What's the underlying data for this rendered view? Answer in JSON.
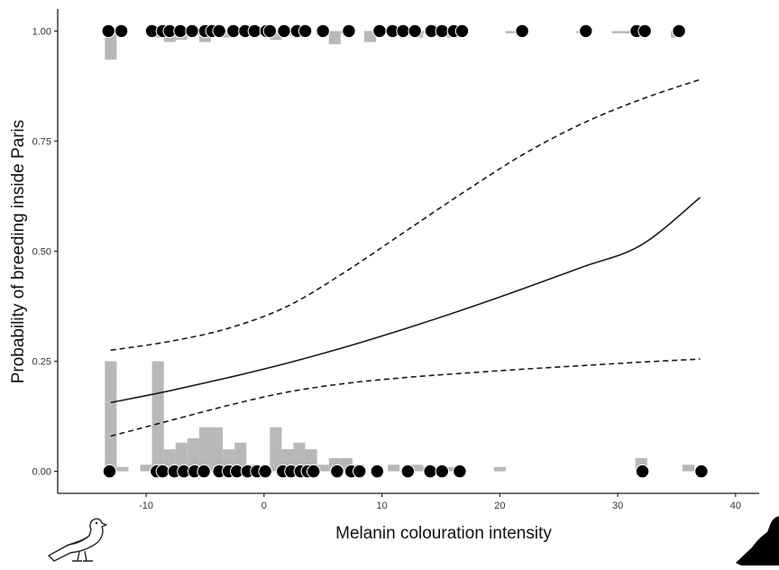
{
  "chart_data": {
    "type": "scatter",
    "title": "",
    "xlabel": "Melanin colouration intensity",
    "ylabel": "Probability of breeding inside Paris",
    "xlim": [
      -17.5,
      42
    ],
    "ylim": [
      -0.05,
      1.05
    ],
    "x_ticks": [
      -10,
      0,
      10,
      20,
      30,
      40
    ],
    "x_tick_labels": [
      "-10",
      "0",
      "10",
      "20",
      "30",
      "40"
    ],
    "y_ticks": [
      0,
      0.25,
      0.5,
      0.75,
      1
    ],
    "y_tick_labels": [
      "0.00",
      "0.25",
      "0.50",
      "0.75",
      "1.00"
    ],
    "grid": false,
    "legend": "none",
    "colors": {
      "points": "#000000",
      "point_outline": "#ffffff",
      "histogram": "#b8b8b8",
      "fit": "#1a1a1a",
      "axes": "#1a1a1a"
    },
    "icons": [
      "pale-pigeon-outline-icon",
      "dark-pigeon-silhouette-icon"
    ],
    "fit": {
      "x": [
        -13,
        -8,
        -3,
        2,
        7,
        12,
        17,
        22,
        27,
        32,
        37
      ],
      "y": [
        0.156,
        0.183,
        0.213,
        0.246,
        0.283,
        0.324,
        0.368,
        0.415,
        0.464,
        0.514,
        0.622
      ]
    },
    "ci_upper": {
      "x": [
        -13,
        -8,
        -3,
        2,
        7,
        12,
        17,
        22,
        27,
        32,
        37
      ],
      "y": [
        0.275,
        0.295,
        0.325,
        0.375,
        0.455,
        0.545,
        0.635,
        0.72,
        0.79,
        0.845,
        0.89
      ]
    },
    "ci_lower": {
      "x": [
        -13,
        -8,
        -3,
        2,
        7,
        12,
        17,
        22,
        27,
        32,
        37
      ],
      "y": [
        0.08,
        0.115,
        0.15,
        0.18,
        0.2,
        0.213,
        0.223,
        0.232,
        0.24,
        0.248,
        0.255
      ]
    },
    "points_y1": [
      -13.2,
      -12.1,
      -9.5,
      -8.6,
      -8,
      -7.1,
      -6.1,
      -5,
      -4.4,
      -3.8,
      -2.6,
      -1.6,
      -0.8,
      0.2,
      0.5,
      1.7,
      2.8,
      3.5,
      5,
      7.2,
      9.8,
      10.9,
      11.8,
      12.8,
      14.2,
      15.1,
      16.1,
      16.8,
      21.9,
      27.3,
      31.6,
      32.3,
      35.2
    ],
    "points_y0": [
      -13.1,
      -9.1,
      -8.6,
      -7.6,
      -6.8,
      -5.9,
      -5.1,
      -3.8,
      -3,
      -2.3,
      -1.4,
      -0.6,
      0.1,
      1.6,
      2.3,
      3.1,
      3.7,
      4.2,
      6.2,
      7.4,
      8.1,
      9.6,
      12.2,
      14.1,
      15.1,
      16.6,
      32.1,
      37.1
    ],
    "hist_bin_width": 1,
    "hist_y1": [
      {
        "x": -13,
        "p": 0.065
      },
      {
        "x": -9,
        "p": 0.015
      },
      {
        "x": -8,
        "p": 0.025
      },
      {
        "x": -7,
        "p": 0.02
      },
      {
        "x": -6,
        "p": 0.01
      },
      {
        "x": -5,
        "p": 0.025
      },
      {
        "x": -3,
        "p": 0.015
      },
      {
        "x": 0,
        "p": 0.01
      },
      {
        "x": 1,
        "p": 0.02
      },
      {
        "x": 2,
        "p": 0.01
      },
      {
        "x": 5,
        "p": 0.005
      },
      {
        "x": 6,
        "p": 0.03
      },
      {
        "x": 7,
        "p": 0.005
      },
      {
        "x": 9,
        "p": 0.025
      },
      {
        "x": 12,
        "p": 0.01
      },
      {
        "x": 13,
        "p": 0.015
      },
      {
        "x": 14,
        "p": 0.005
      },
      {
        "x": 15,
        "p": 0.01
      },
      {
        "x": 16,
        "p": 0.015
      },
      {
        "x": 21,
        "p": 0.005
      },
      {
        "x": 27,
        "p": 0.005
      },
      {
        "x": 30,
        "p": 0.005
      },
      {
        "x": 31,
        "p": 0.005
      },
      {
        "x": 35,
        "p": 0.015
      }
    ],
    "hist_y0": [
      {
        "x": -13,
        "p": 0.25
      },
      {
        "x": -12,
        "p": 0.01
      },
      {
        "x": -10,
        "p": 0.015
      },
      {
        "x": -9,
        "p": 0.25
      },
      {
        "x": -8,
        "p": 0.05
      },
      {
        "x": -7,
        "p": 0.065
      },
      {
        "x": -6,
        "p": 0.075
      },
      {
        "x": -5,
        "p": 0.1
      },
      {
        "x": -4,
        "p": 0.1
      },
      {
        "x": -3,
        "p": 0.05
      },
      {
        "x": -2,
        "p": 0.065
      },
      {
        "x": -1,
        "p": 0.015
      },
      {
        "x": 0,
        "p": 0.01
      },
      {
        "x": 1,
        "p": 0.1
      },
      {
        "x": 2,
        "p": 0.05
      },
      {
        "x": 3,
        "p": 0.065
      },
      {
        "x": 4,
        "p": 0.05
      },
      {
        "x": 5,
        "p": 0.015
      },
      {
        "x": 6,
        "p": 0.03
      },
      {
        "x": 7,
        "p": 0.03
      },
      {
        "x": 8,
        "p": 0.015
      },
      {
        "x": 11,
        "p": 0.015
      },
      {
        "x": 13,
        "p": 0.015
      },
      {
        "x": 14,
        "p": 0.01
      },
      {
        "x": 16,
        "p": 0.01
      },
      {
        "x": 20,
        "p": 0.01
      },
      {
        "x": 32,
        "p": 0.03
      },
      {
        "x": 36,
        "p": 0.015
      }
    ]
  }
}
